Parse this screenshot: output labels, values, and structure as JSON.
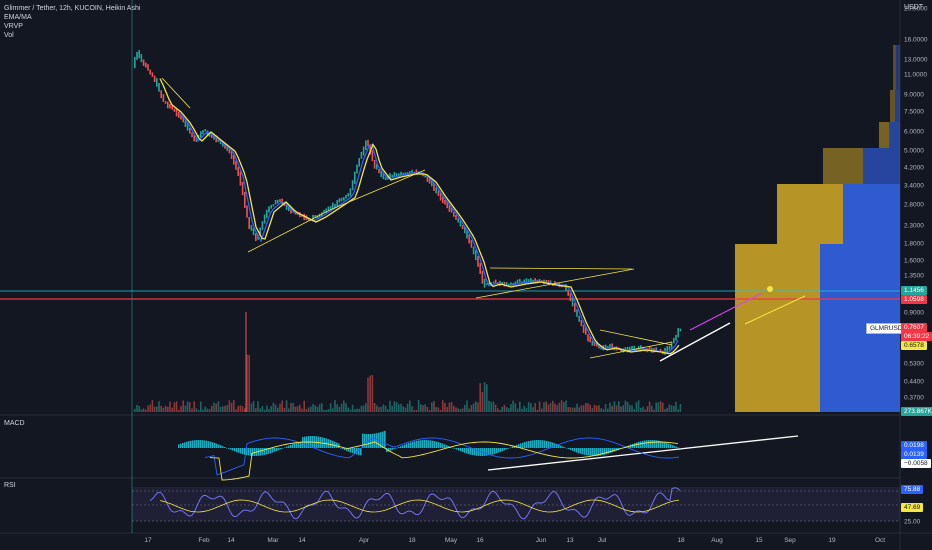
{
  "legend": {
    "title": "Glimmer / Tether, 12h, KUCOIN, Heikin Ashi",
    "ema": "EMA/MA",
    "vrvp": "VRVP",
    "vol": "Vol"
  },
  "currency": "USDT",
  "macd_label": "MACD",
  "rsi_label": "RSI",
  "colors": {
    "background": "#131722",
    "up": "#26a69a",
    "down": "#ef5350",
    "ema_yellow": "#f5e642",
    "ma_blue": "#2962ff",
    "horizontal_red": "#f23645",
    "horizontal_teal": "#26c6da",
    "vrvp_gold": "#c9a227",
    "vrvp_blue": "#2f5bd1"
  },
  "price_axis": [
    "20.0000",
    "16.0000",
    "13.0000",
    "11.0000",
    "9.0000",
    "7.5000",
    "6.0000",
    "5.0000",
    "4.2000",
    "3.4000",
    "2.8000",
    "2.3000",
    "1.8000",
    "1.6000",
    "1.3500",
    "1.1456",
    "1.0598",
    "0.9000",
    "0.7607",
    "0.6578",
    "0.5300",
    "0.4400",
    "0.3700",
    "273.867K"
  ],
  "badges": {
    "symbol": "GLMRUSDT",
    "price": "0.7607",
    "countdown": "06:39:22",
    "teal_level": "1.1456",
    "red_level": "1.0598",
    "yellow_level": "0.6578",
    "volume": "273.867K"
  },
  "macd_values": [
    "0.0198",
    "0.0139",
    "−0.0058"
  ],
  "rsi_values": [
    "75.88",
    "47.69",
    "25.00"
  ],
  "time_axis": [
    "17",
    "Feb",
    "14",
    "Mar",
    "14",
    "Apr",
    "18",
    "May",
    "16",
    "Jun",
    "13",
    "Jul",
    "18",
    "Aug",
    "15",
    "Sep",
    "19",
    "Oct"
  ],
  "chart_data": {
    "type": "candlestick",
    "symbol": "GLMRUSDT",
    "timeframe": "12h",
    "price_series_approx": [
      {
        "date": "Jan 11",
        "price": 9.5
      },
      {
        "date": "Jan 20",
        "price": 7.0
      },
      {
        "date": "Feb 1",
        "price": 5.5
      },
      {
        "date": "Feb 14",
        "price": 5.3
      },
      {
        "date": "Feb 22",
        "price": 2.3
      },
      {
        "date": "Mar 1",
        "price": 2.9
      },
      {
        "date": "Mar 14",
        "price": 2.6
      },
      {
        "date": "Apr 1",
        "price": 4.6
      },
      {
        "date": "Apr 18",
        "price": 4.2
      },
      {
        "date": "May 1",
        "price": 2.6
      },
      {
        "date": "May 10",
        "price": 1.3
      },
      {
        "date": "Jun 1",
        "price": 1.3
      },
      {
        "date": "Jun 13",
        "price": 0.7
      },
      {
        "date": "Jul 1",
        "price": 0.67
      },
      {
        "date": "Jul 16",
        "price": 0.76
      }
    ],
    "levels": {
      "resistance_teal": 1.1456,
      "resistance_red": 1.0598,
      "support_yellow": 0.6578,
      "last_price": 0.7607
    },
    "macd": {
      "macd": 0.0198,
      "signal": 0.0139,
      "histogram": -0.0058
    },
    "rsi": {
      "upper": 75.88,
      "value": 47.69,
      "lower": 25.0
    }
  }
}
